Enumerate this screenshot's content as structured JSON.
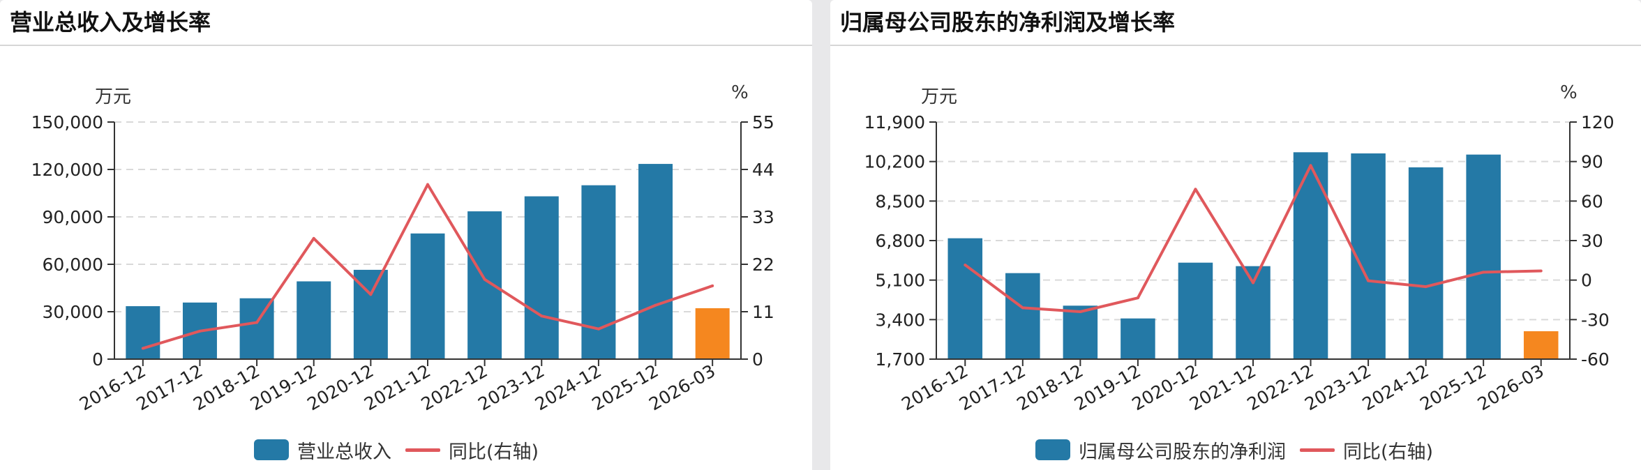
{
  "colors": {
    "bar": "#2479a6",
    "bar_highlight": "#f5871f",
    "line": "#e0585c",
    "grid": "#d9d9d9",
    "axis": "#333333"
  },
  "chart_data": [
    {
      "type": "bar",
      "title": "营业总收入及增长率",
      "left_unit": "万元",
      "right_unit": "%",
      "categories": [
        "2016-12",
        "2017-12",
        "2018-12",
        "2019-12",
        "2020-12",
        "2021-12",
        "2022-12",
        "2023-12",
        "2024-12",
        "2025-12",
        "2026-03"
      ],
      "series": [
        {
          "name": "营业总收入",
          "type": "bar",
          "axis": "left",
          "values": [
            33500,
            35800,
            38500,
            49200,
            56500,
            79500,
            93500,
            103000,
            110000,
            123500,
            32200
          ]
        },
        {
          "name": "同比(右轴)",
          "type": "line",
          "axis": "right",
          "values": [
            2.5,
            6.5,
            8.5,
            28,
            15,
            40.5,
            18.5,
            10,
            7,
            12.5,
            17
          ]
        }
      ],
      "highlight_index": 10,
      "left_ticks": [
        0,
        30000,
        60000,
        90000,
        120000,
        150000
      ],
      "left_tick_labels": [
        "0",
        "30,000",
        "60,000",
        "90,000",
        "120,000",
        "150,000"
      ],
      "right_ticks": [
        0,
        11,
        22,
        33,
        44,
        55
      ],
      "right_tick_labels": [
        "0",
        "11",
        "22",
        "33",
        "44",
        "55"
      ],
      "ylim": [
        0,
        150000
      ],
      "ylim_right": [
        0,
        55
      ],
      "grid": true,
      "legend_position": "bottom-center"
    },
    {
      "type": "bar",
      "title": "归属母公司股东的净利润及增长率",
      "left_unit": "万元",
      "right_unit": "%",
      "categories": [
        "2016-12",
        "2017-12",
        "2018-12",
        "2019-12",
        "2020-12",
        "2021-12",
        "2022-12",
        "2023-12",
        "2024-12",
        "2025-12",
        "2026-03"
      ],
      "series": [
        {
          "name": "归属母公司股东的净利润",
          "type": "bar",
          "axis": "left",
          "values": [
            6900,
            5400,
            4000,
            3450,
            5850,
            5700,
            10600,
            10550,
            9950,
            10500,
            2900
          ]
        },
        {
          "name": "同比(右轴)",
          "type": "line",
          "axis": "right",
          "values": [
            11.5,
            -21,
            -24,
            -13.5,
            69,
            -2,
            87,
            -0.5,
            -5,
            6,
            7
          ]
        }
      ],
      "highlight_index": 10,
      "left_ticks": [
        1700,
        3400,
        5100,
        6800,
        8500,
        10200,
        11900
      ],
      "left_tick_labels": [
        "1,700",
        "3,400",
        "5,100",
        "6,800",
        "8,500",
        "10,200",
        "11,900"
      ],
      "right_ticks": [
        -60,
        -30,
        0,
        30,
        60,
        90,
        120
      ],
      "right_tick_labels": [
        "-60",
        "-30",
        "0",
        "30",
        "60",
        "90",
        "120"
      ],
      "ylim": [
        1700,
        11900
      ],
      "ylim_right": [
        -60,
        120
      ],
      "grid": true,
      "legend_position": "bottom-center"
    }
  ]
}
